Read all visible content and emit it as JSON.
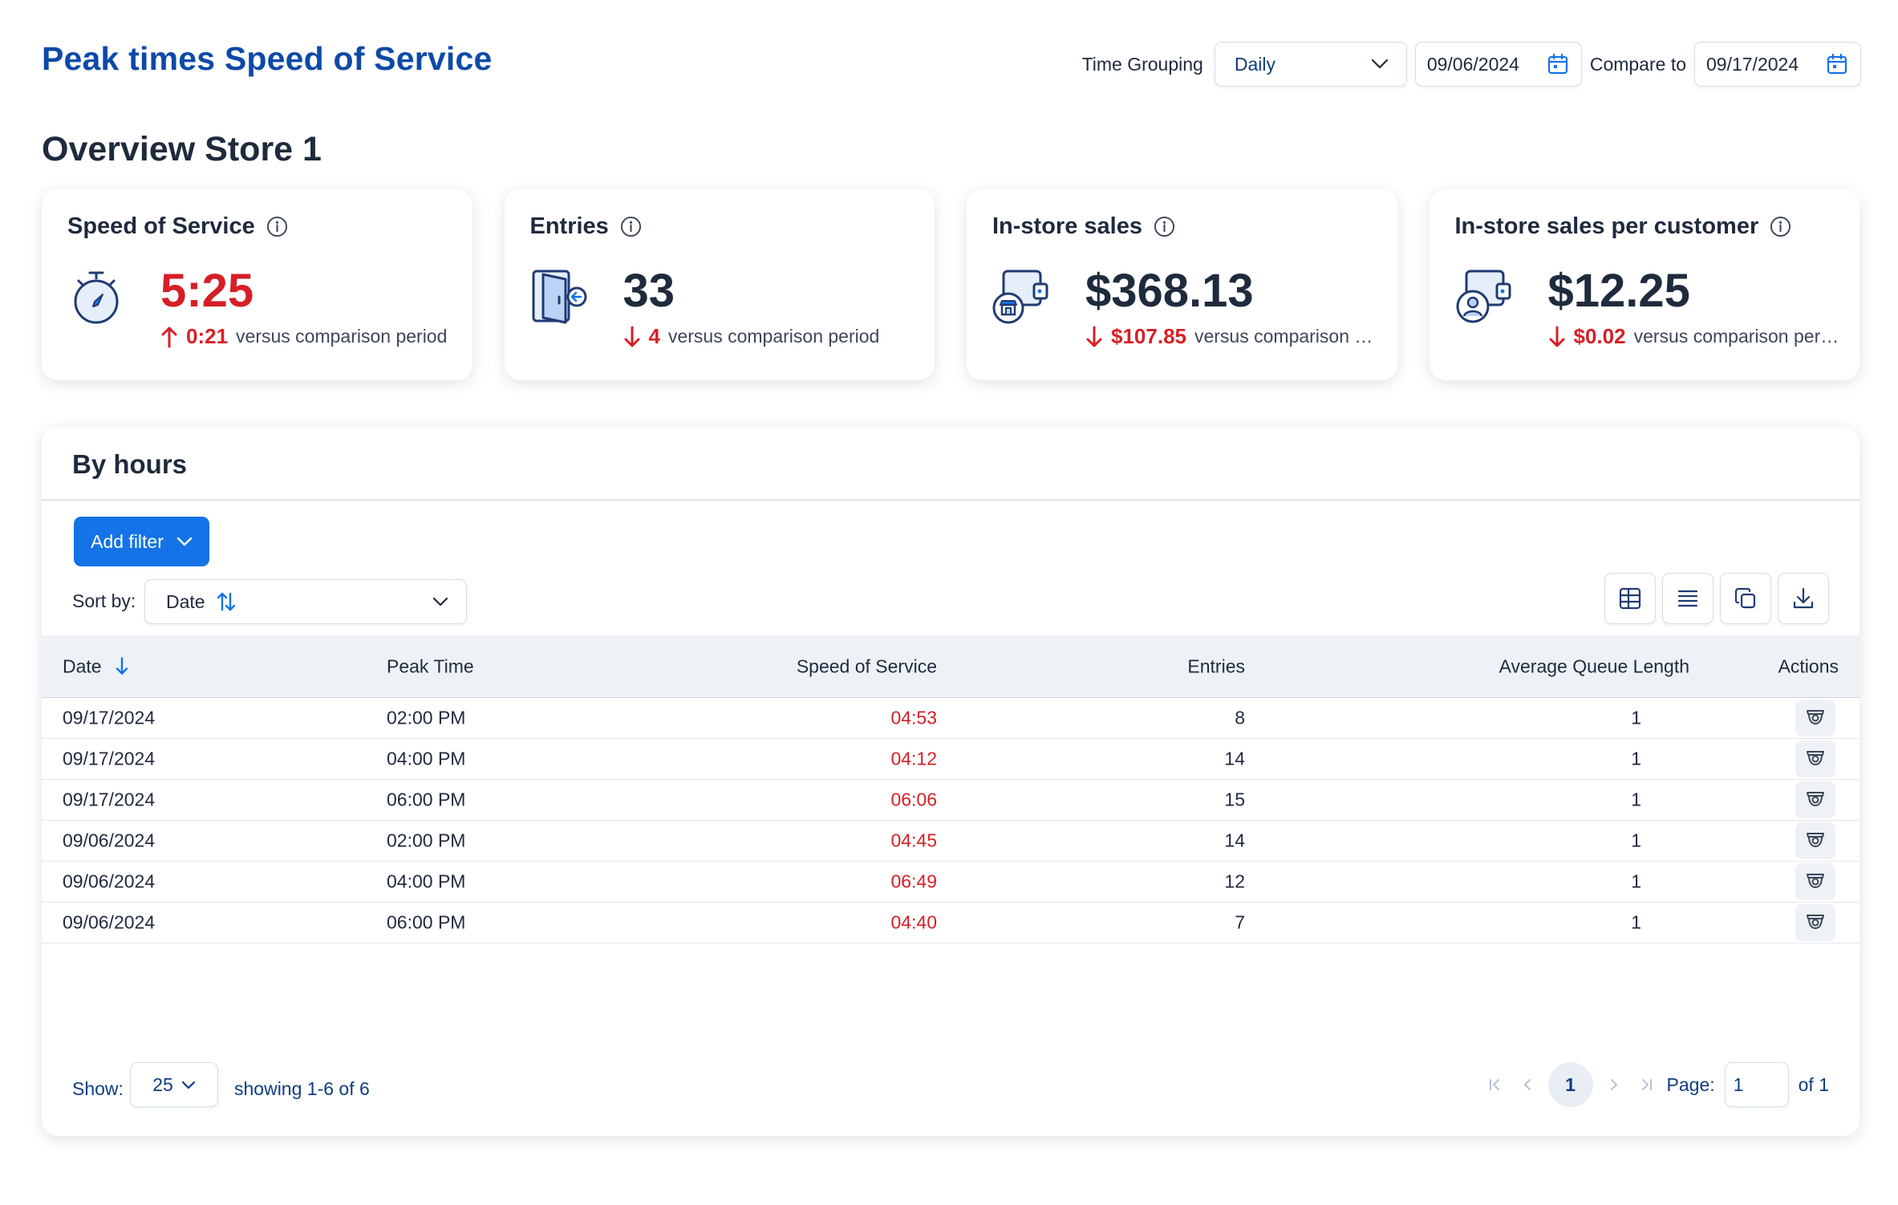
{
  "header": {
    "title": "Peak times Speed of Service",
    "time_grouping_label": "Time Grouping",
    "time_grouping_value": "Daily",
    "start_date": "09/06/2024",
    "compare_label": "Compare to",
    "compare_date": "09/17/2024"
  },
  "overview": {
    "title": "Overview Store 1",
    "cards": [
      {
        "title": "Speed of Service",
        "icon": "stopwatch-icon",
        "value": "5:25",
        "value_color": "#d61f26",
        "delta_direction": "up",
        "delta_value": "0:21",
        "delta_text": "versus comparison period"
      },
      {
        "title": "Entries",
        "icon": "door-entry-icon",
        "value": "33",
        "value_color": "#1f2a3d",
        "delta_direction": "down",
        "delta_value": "4",
        "delta_text": "versus comparison period"
      },
      {
        "title": "In-store sales",
        "icon": "store-wallet-icon",
        "value": "$368.13",
        "value_color": "#1f2a3d",
        "delta_direction": "down",
        "delta_value": "$107.85",
        "delta_text": "versus comparison period"
      },
      {
        "title": "In-store sales per customer",
        "icon": "customer-wallet-icon",
        "value": "$12.25",
        "value_color": "#1f2a3d",
        "delta_direction": "down",
        "delta_value": "$0.02",
        "delta_text": "versus comparison period"
      }
    ]
  },
  "by_hours": {
    "title": "By hours",
    "add_filter_label": "Add filter",
    "sort_label": "Sort by:",
    "sort_value": "Date",
    "toolbar_icons": [
      "table-view-icon",
      "list-view-icon",
      "copy-icon",
      "download-icon"
    ],
    "columns": [
      "Date",
      "Peak Time",
      "Speed of Service",
      "Entries",
      "Average Queue Length",
      "Actions"
    ],
    "rows": [
      {
        "date": "09/17/2024",
        "peak_time": "02:00 PM",
        "speed": "04:53",
        "entries": "8",
        "queue": "1"
      },
      {
        "date": "09/17/2024",
        "peak_time": "04:00 PM",
        "speed": "04:12",
        "entries": "14",
        "queue": "1"
      },
      {
        "date": "09/17/2024",
        "peak_time": "06:00 PM",
        "speed": "06:06",
        "entries": "15",
        "queue": "1"
      },
      {
        "date": "09/06/2024",
        "peak_time": "02:00 PM",
        "speed": "04:45",
        "entries": "14",
        "queue": "1"
      },
      {
        "date": "09/06/2024",
        "peak_time": "04:00 PM",
        "speed": "06:49",
        "entries": "12",
        "queue": "1"
      },
      {
        "date": "09/06/2024",
        "peak_time": "06:00 PM",
        "speed": "04:40",
        "entries": "7",
        "queue": "1"
      }
    ],
    "footer": {
      "show_label": "Show:",
      "page_size": "25",
      "showing_text": "showing 1-6 of 6",
      "current_page": "1",
      "page_label": "Page:",
      "page_input": "1",
      "of_text": "of 1"
    }
  },
  "colors": {
    "accent": "#1473e6",
    "title_blue": "#0d4aa8",
    "negative_red": "#d61f26"
  }
}
